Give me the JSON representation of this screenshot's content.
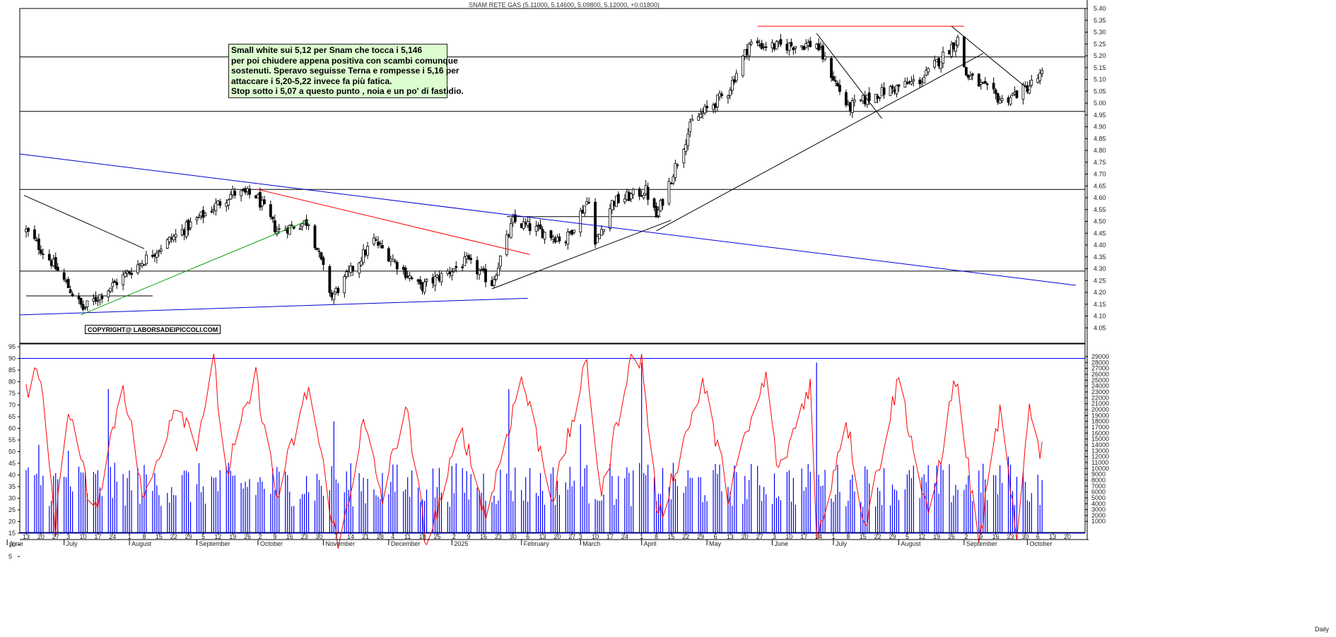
{
  "chart_data": [
    {
      "type": "candlestick",
      "title": "SNAM RETE GAS (5.11000, 5.14600, 5.09800, 5.12000, +0.01800)",
      "ylim": [
        4.0,
        5.4
      ],
      "y_ticks": [
        "4.05",
        "4.10",
        "4.15",
        "4.20",
        "4.25",
        "4.30",
        "4.35",
        "4.40",
        "4.45",
        "4.50",
        "4.55",
        "4.60",
        "4.65",
        "4.70",
        "4.75",
        "4.80",
        "4.85",
        "4.90",
        "4.95",
        "5.00",
        "5.05",
        "5.10",
        "5.15",
        "5.20",
        "5.25",
        "5.30",
        "5.35",
        "5.40"
      ],
      "horizontal_levels": [
        4.965,
        5.195,
        4.635,
        4.29
      ],
      "segment_levels": [
        {
          "from": "2024-06-13",
          "to": "2024-08-12",
          "value": 4.185
        },
        {
          "from": "2025-01-27",
          "to": "2025-04-10",
          "value": 4.52
        },
        {
          "from": "2025-05-26",
          "to": "2025-09-01",
          "value": 5.325
        }
      ],
      "trendlines": [
        {
          "color": "#0000cc",
          "from": [
            "2024-06-10",
            4.785
          ],
          "to": [
            "2025-10-24",
            4.23
          ]
        },
        {
          "color": "#0000cc",
          "from": [
            "2024-06-10",
            4.105
          ],
          "to": [
            "2025-02-06",
            4.175
          ]
        },
        {
          "color": "#000000",
          "from": [
            "2024-06-12",
            4.61
          ],
          "to": [
            "2024-08-08",
            4.385
          ]
        },
        {
          "color": "#00a000",
          "from": [
            "2024-07-09",
            4.105
          ],
          "to": [
            "2024-10-25",
            4.505
          ]
        },
        {
          "color": "#ff0000",
          "from": [
            "2024-10-01",
            4.635
          ],
          "to": [
            "2025-02-07",
            4.36
          ]
        },
        {
          "color": "#000000",
          "from": [
            "2025-01-20",
            4.215
          ],
          "to": [
            "2025-04-15",
            4.505
          ]
        },
        {
          "color": "#000000",
          "from": [
            "2025-04-08",
            4.46
          ],
          "to": [
            "2025-09-10",
            5.21
          ]
        },
        {
          "color": "#000000",
          "from": [
            "2025-06-23",
            5.295
          ],
          "to": [
            "2025-07-24",
            4.935
          ]
        },
        {
          "color": "#000000",
          "from": [
            "2025-08-26",
            5.325
          ],
          "to": [
            "2025-10-02",
            5.055
          ]
        }
      ],
      "key_points": [
        [
          "2024-06-13",
          4.46
        ],
        [
          "2024-06-25",
          4.33
        ],
        [
          "2024-07-10",
          4.13
        ],
        [
          "2024-08-14",
          4.38
        ],
        [
          "2024-09-19",
          4.62
        ],
        [
          "2024-09-30",
          4.61
        ],
        [
          "2024-10-10",
          4.46
        ],
        [
          "2024-10-25",
          4.5
        ],
        [
          "2024-11-05",
          4.18
        ],
        [
          "2024-11-25",
          4.42
        ],
        [
          "2024-12-17",
          4.22
        ],
        [
          "2025-01-08",
          4.33
        ],
        [
          "2025-01-20",
          4.24
        ],
        [
          "2025-01-30",
          4.5
        ],
        [
          "2025-02-24",
          4.42
        ],
        [
          "2025-03-07",
          4.6
        ],
        [
          "2025-03-10",
          4.4
        ],
        [
          "2025-03-18",
          4.58
        ],
        [
          "2025-04-03",
          4.63
        ],
        [
          "2025-04-08",
          4.52
        ],
        [
          "2025-04-25",
          4.92
        ],
        [
          "2025-05-12",
          5.05
        ],
        [
          "2025-05-22",
          5.25
        ],
        [
          "2025-06-03",
          5.24
        ],
        [
          "2025-06-23",
          5.25
        ],
        [
          "2025-07-08",
          4.98
        ],
        [
          "2025-07-22",
          5.04
        ],
        [
          "2025-08-12",
          5.1
        ],
        [
          "2025-08-29",
          5.27
        ],
        [
          "2025-09-02",
          5.12
        ],
        [
          "2025-09-19",
          5.01
        ],
        [
          "2025-09-30",
          5.06
        ],
        [
          "2025-10-08",
          5.12
        ]
      ],
      "annotation_lines": [
        "Small white sui 5,12 per Snam che tocca i 5,146",
        "per poi chiudere appena positiva con scambi comunque",
        "sostenuti. Speravo seguisse Terna e rompesse i 5,16 per",
        "attaccare i 5,20-5,22 invece fa più fatica.",
        "Stop sotto i 5,07 a questo punto , noia e un po' di fastidio."
      ],
      "copyright": "COPYRIGHT@ LABORSADEIPICCOLI.COM"
    },
    {
      "type": "line+bar",
      "series": [
        {
          "kind": "oscillator",
          "color": "#ff0000",
          "ylim": [
            0,
            95
          ],
          "key_points": [
            [
              "2024-06-13",
              75
            ],
            [
              "2024-06-19",
              86
            ],
            [
              "2024-06-27",
              18
            ],
            [
              "2024-07-03",
              70
            ],
            [
              "2024-07-15",
              22
            ],
            [
              "2024-07-29",
              80
            ],
            [
              "2024-08-08",
              28
            ],
            [
              "2024-08-23",
              72
            ],
            [
              "2024-09-02",
              55
            ],
            [
              "2024-09-10",
              88
            ],
            [
              "2024-09-16",
              40
            ],
            [
              "2024-09-30",
              82
            ],
            [
              "2024-10-10",
              30
            ],
            [
              "2024-10-25",
              78
            ],
            [
              "2024-11-08",
              8
            ],
            [
              "2024-11-20",
              62
            ],
            [
              "2024-11-29",
              30
            ],
            [
              "2024-12-10",
              70
            ],
            [
              "2024-12-20",
              10
            ],
            [
              "2025-01-06",
              60
            ],
            [
              "2025-01-17",
              22
            ],
            [
              "2025-02-03",
              82
            ],
            [
              "2025-02-18",
              30
            ],
            [
              "2025-03-06",
              88
            ],
            [
              "2025-03-13",
              30
            ],
            [
              "2025-03-26",
              88
            ],
            [
              "2025-04-01",
              90
            ],
            [
              "2025-04-09",
              20
            ],
            [
              "2025-04-30",
              80
            ],
            [
              "2025-05-12",
              32
            ],
            [
              "2025-05-30",
              82
            ],
            [
              "2025-06-05",
              40
            ],
            [
              "2025-06-20",
              80
            ],
            [
              "2025-06-23",
              10
            ],
            [
              "2025-07-07",
              65
            ],
            [
              "2025-07-16",
              18
            ],
            [
              "2025-08-01",
              82
            ],
            [
              "2025-08-15",
              20
            ],
            [
              "2025-08-28",
              82
            ],
            [
              "2025-09-08",
              10
            ],
            [
              "2025-09-18",
              68
            ],
            [
              "2025-09-26",
              10
            ],
            [
              "2025-10-02",
              73
            ],
            [
              "2025-10-07",
              48
            ],
            [
              "2025-10-14",
              72
            ]
          ]
        },
        {
          "kind": "volume",
          "color": "#0000ff",
          "ylim": [
            0,
            30000
          ],
          "y_ticks": [
            "29000",
            "28000",
            "27000",
            "26000",
            "25000",
            "24000",
            "23000",
            "22000",
            "21000",
            "20000",
            "19000",
            "18000",
            "17000",
            "16000",
            "15000",
            "14000",
            "13000",
            "12000",
            "11000",
            "10000",
            "9000",
            "8000",
            "7000",
            "6000",
            "5000",
            "4000",
            "3000",
            "2000",
            "1000"
          ],
          "key_points": [
            [
              "2024-06-19",
              14000
            ],
            [
              "2024-07-03",
              13000
            ],
            [
              "2024-07-22",
              23500
            ],
            [
              "2024-09-11",
              8500
            ],
            [
              "2024-11-06",
              18000
            ],
            [
              "2025-01-28",
              23500
            ],
            [
              "2025-03-03",
              17500
            ],
            [
              "2025-04-01",
              28000
            ],
            [
              "2025-06-23",
              28000
            ],
            [
              "2025-09-22",
              12000
            ],
            [
              "2025-10-08",
              8000
            ]
          ]
        }
      ],
      "oscillator_y_ticks": [
        "95",
        "90",
        "85",
        "80",
        "75",
        "70",
        "65",
        "60",
        "55",
        "50",
        "45",
        "40",
        "35",
        "30",
        "25",
        "20",
        "15",
        "10",
        "5"
      ],
      "hlines": [
        {
          "value": 90,
          "color": "#0000ff"
        },
        {
          "value": 15,
          "color": "#0000ff"
        }
      ],
      "x_day_ticks": [
        [
          "2024-06-13",
          "13"
        ],
        [
          "2024-06-20",
          "20"
        ],
        [
          "2024-06-27",
          "27"
        ],
        [
          "2024-07-03",
          "3"
        ],
        [
          "2024-07-10",
          "10"
        ],
        [
          "2024-07-17",
          "17"
        ],
        [
          "2024-07-24",
          "24"
        ],
        [
          "2024-08-01",
          "1"
        ],
        [
          "2024-08-08",
          "8"
        ],
        [
          "2024-08-15",
          "15"
        ],
        [
          "2024-08-22",
          "22"
        ],
        [
          "2024-08-29",
          "29"
        ],
        [
          "2024-09-05",
          "5"
        ],
        [
          "2024-09-12",
          "12"
        ],
        [
          "2024-09-19",
          "19"
        ],
        [
          "2024-09-26",
          "26"
        ],
        [
          "2024-10-02",
          "2"
        ],
        [
          "2024-10-09",
          "9"
        ],
        [
          "2024-10-16",
          "16"
        ],
        [
          "2024-10-23",
          "23"
        ],
        [
          "2024-10-30",
          "30"
        ],
        [
          "2024-11-07",
          "7"
        ],
        [
          "2024-11-14",
          "14"
        ],
        [
          "2024-11-21",
          "21"
        ],
        [
          "2024-11-28",
          "28"
        ],
        [
          "2024-12-04",
          "4"
        ],
        [
          "2024-12-11",
          "11"
        ],
        [
          "2024-12-18",
          "18"
        ],
        [
          "2024-12-25",
          "25"
        ],
        [
          "2025-01-02",
          "2"
        ],
        [
          "2025-01-09",
          "9"
        ],
        [
          "2025-01-16",
          "16"
        ],
        [
          "2025-01-23",
          "23"
        ],
        [
          "2025-01-30",
          "30"
        ],
        [
          "2025-02-06",
          "6"
        ],
        [
          "2025-02-13",
          "13"
        ],
        [
          "2025-02-20",
          "20"
        ],
        [
          "2025-02-27",
          "27"
        ],
        [
          "2025-03-03",
          "3"
        ],
        [
          "2025-03-10",
          "10"
        ],
        [
          "2025-03-17",
          "17"
        ],
        [
          "2025-03-24",
          "24"
        ],
        [
          "2025-04-01",
          "1"
        ],
        [
          "2025-04-08",
          "8"
        ],
        [
          "2025-04-15",
          "15"
        ],
        [
          "2025-04-22",
          "22"
        ],
        [
          "2025-04-29",
          "29"
        ],
        [
          "2025-05-06",
          "6"
        ],
        [
          "2025-05-13",
          "13"
        ],
        [
          "2025-05-20",
          "20"
        ],
        [
          "2025-05-27",
          "27"
        ],
        [
          "2025-06-03",
          "3"
        ],
        [
          "2025-06-10",
          "10"
        ],
        [
          "2025-06-17",
          "17"
        ],
        [
          "2025-06-24",
          "24"
        ],
        [
          "2025-07-01",
          "1"
        ],
        [
          "2025-07-08",
          "8"
        ],
        [
          "2025-07-15",
          "15"
        ],
        [
          "2025-07-22",
          "22"
        ],
        [
          "2025-07-29",
          "29"
        ],
        [
          "2025-08-05",
          "5"
        ],
        [
          "2025-08-12",
          "12"
        ],
        [
          "2025-08-19",
          "19"
        ],
        [
          "2025-08-26",
          "26"
        ],
        [
          "2025-09-02",
          "2"
        ],
        [
          "2025-09-09",
          "9"
        ],
        [
          "2025-09-16",
          "16"
        ],
        [
          "2025-09-23",
          "23"
        ],
        [
          "2025-09-30",
          "30"
        ],
        [
          "2025-10-06",
          "6"
        ],
        [
          "2025-10-13",
          "13"
        ],
        [
          "2025-10-20",
          "20"
        ]
      ],
      "x_month_labels": [
        [
          "2024-06-04",
          "June"
        ],
        [
          "2024-07-01",
          "July"
        ],
        [
          "2024-08-01",
          "August"
        ],
        [
          "2024-09-02",
          "September"
        ],
        [
          "2024-10-01",
          "October"
        ],
        [
          "2024-11-01",
          "November"
        ],
        [
          "2024-12-02",
          "December"
        ],
        [
          "2025-01-01",
          "2025"
        ],
        [
          "2025-02-03",
          "February"
        ],
        [
          "2025-03-03",
          "March"
        ],
        [
          "2025-04-01",
          "April"
        ],
        [
          "2025-05-02",
          "May"
        ],
        [
          "2025-06-02",
          "June"
        ],
        [
          "2025-07-01",
          "July"
        ],
        [
          "2025-08-01",
          "August"
        ],
        [
          "2025-09-01",
          "September"
        ],
        [
          "2025-10-01",
          "October"
        ]
      ],
      "corner_label": "Daily"
    }
  ],
  "colors": {
    "background": "#ffffff",
    "candle": "#000000",
    "oscillator": "#ff0000",
    "volume": "#0000ff",
    "note_background": "#ddfcd0"
  }
}
